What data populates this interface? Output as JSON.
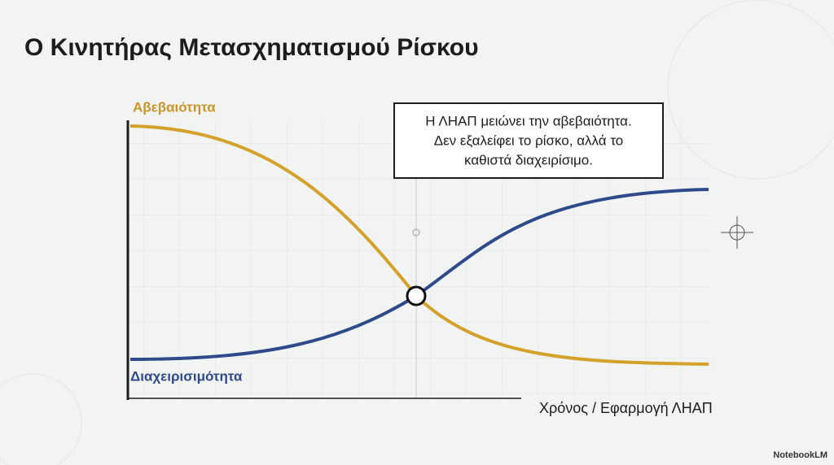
{
  "header": {
    "title": "Ο Κινητήρας Μετασχηματισμού Ρίσκου"
  },
  "diagram": {
    "curve_top_label": "Αβεβαιότητα",
    "curve_bottom_label": "Διαχειρισιμότητα",
    "x_axis_label": "Χρόνος / Εφαρμογή ΛΗΑΠ",
    "annotation": [
      "Η ΛΗΑΠ μειώνει την αβεβαιότητα.",
      "Δεν εξαλείφει το ρίσκο, αλλά το",
      "καθιστά διαχειρίσιμο."
    ]
  },
  "footer": {
    "brand": "NotebookLM"
  }
}
